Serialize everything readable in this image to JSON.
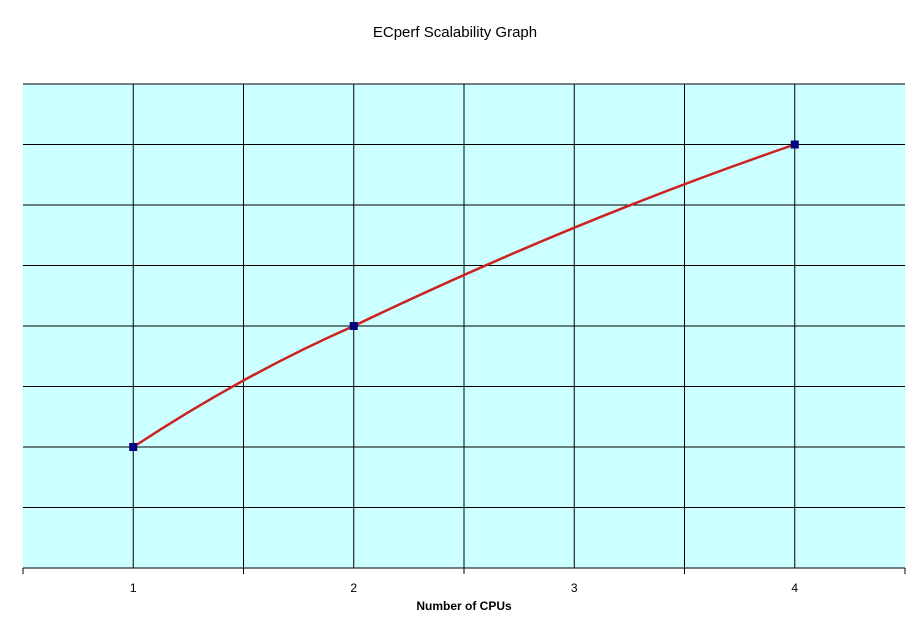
{
  "chart_data": {
    "type": "line",
    "title": "ECperf Scalability Graph",
    "xlabel": "Number of CPUs",
    "ylabel": "",
    "x_tick_labels": [
      "1",
      "2",
      "3",
      "4"
    ],
    "x": [
      1,
      2,
      4
    ],
    "series": [
      {
        "values": [
          2,
          4,
          7
        ],
        "line_color": "#cc2222",
        "marker_color": "#000080",
        "marker": "square"
      }
    ],
    "xlim": [
      0.5,
      4.5
    ],
    "ylim": [
      0,
      8
    ],
    "y_gridlines": 8,
    "grid": true,
    "plot_background": "#ccffff",
    "legend": "none"
  }
}
